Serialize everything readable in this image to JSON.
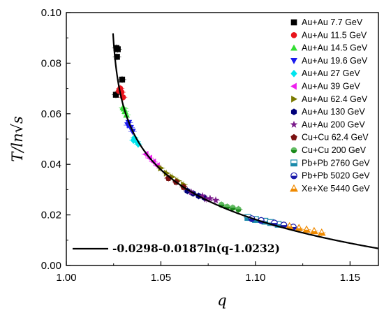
{
  "chart_data": {
    "type": "scatter",
    "title": "",
    "xlabel": "q",
    "ylabel": "T/ln√s",
    "xlim": [
      1.0,
      1.165
    ],
    "ylim": [
      0.0,
      0.1
    ],
    "x_ticks": [
      1.0,
      1.05,
      1.1,
      1.15
    ],
    "y_ticks": [
      0.0,
      0.02,
      0.04,
      0.06,
      0.08,
      0.1
    ],
    "x_tick_labels": [
      "1.00",
      "1.05",
      "1.10",
      "1.15"
    ],
    "y_tick_labels": [
      "0.00",
      "0.02",
      "0.04",
      "0.06",
      "0.08",
      "0.10"
    ],
    "legend_position": "top-right",
    "fit": {
      "label": "-0.0298-0.0187ln(q-1.0232)",
      "a": -0.0298,
      "b": -0.0187,
      "q0": 1.0232
    },
    "series": [
      {
        "name": "Au+Au 7.7 GeV",
        "marker": "square",
        "color": "#000000",
        "points": [
          [
            1.0265,
            0.086
          ],
          [
            1.0272,
            0.0855
          ],
          [
            1.0268,
            0.0825
          ],
          [
            1.0262,
            0.0675
          ],
          [
            1.0295,
            0.0735
          ]
        ]
      },
      {
        "name": "Au+Au 11.5 GeV",
        "marker": "circle",
        "color": "#e8141c",
        "points": [
          [
            1.0285,
            0.07
          ],
          [
            1.0292,
            0.0685
          ],
          [
            1.03,
            0.0665
          ],
          [
            1.0278,
            0.069
          ]
        ]
      },
      {
        "name": "Au+Au 14.5 GeV",
        "marker": "triangle-up",
        "color": "#33dd33",
        "points": [
          [
            1.03,
            0.0625
          ],
          [
            1.031,
            0.061
          ],
          [
            1.0318,
            0.0595
          ],
          [
            1.0305,
            0.062
          ]
        ]
      },
      {
        "name": "Au+Au 19.6 GeV",
        "marker": "triangle-down",
        "color": "#1a1aee",
        "points": [
          [
            1.033,
            0.0565
          ],
          [
            1.034,
            0.0545
          ],
          [
            1.035,
            0.053
          ],
          [
            1.0325,
            0.0555
          ]
        ]
      },
      {
        "name": "Au+Au 27 GeV",
        "marker": "diamond",
        "color": "#00e5ee",
        "points": [
          [
            1.036,
            0.0505
          ],
          [
            1.0372,
            0.049
          ],
          [
            1.038,
            0.048
          ],
          [
            1.0355,
            0.0495
          ]
        ]
      },
      {
        "name": "Au+Au 39 GeV",
        "marker": "triangle-left",
        "color": "#ee20ee",
        "points": [
          [
            1.042,
            0.044
          ],
          [
            1.044,
            0.0425
          ],
          [
            1.046,
            0.041
          ],
          [
            1.048,
            0.0395
          ]
        ]
      },
      {
        "name": "Au+Au 62.4 GeV",
        "marker": "triangle-right",
        "color": "#7a7a00",
        "points": [
          [
            1.05,
            0.0385
          ],
          [
            1.053,
            0.0365
          ],
          [
            1.056,
            0.035
          ],
          [
            1.059,
            0.0335
          ],
          [
            1.062,
            0.032
          ]
        ]
      },
      {
        "name": "Au+Au 130 GeV",
        "marker": "hexagon",
        "color": "#00007a",
        "points": [
          [
            1.064,
            0.0295
          ],
          [
            1.067,
            0.0285
          ],
          [
            1.07,
            0.0275
          ],
          [
            1.073,
            0.0268
          ]
        ]
      },
      {
        "name": "Au+Au 200 GeV",
        "marker": "star",
        "color": "#7a1a8a",
        "points": [
          [
            1.066,
            0.029
          ],
          [
            1.072,
            0.0275
          ],
          [
            1.076,
            0.0265
          ],
          [
            1.079,
            0.0258
          ],
          [
            1.074,
            0.0262
          ]
        ]
      },
      {
        "name": "Cu+Cu 62.4 GeV",
        "marker": "pentagon",
        "color": "#7a1010",
        "points": [
          [
            1.054,
            0.0345
          ],
          [
            1.058,
            0.033
          ],
          [
            1.062,
            0.031
          ]
        ]
      },
      {
        "name": "Cu+Cu 200 GeV",
        "marker": "circle-half",
        "color": "#1a8a1a",
        "points": [
          [
            1.082,
            0.024
          ],
          [
            1.085,
            0.0232
          ],
          [
            1.088,
            0.0228
          ],
          [
            1.091,
            0.0222
          ]
        ]
      },
      {
        "name": "Pb+Pb 2760 GeV",
        "marker": "square-half",
        "color": "#1a8aaa",
        "points": [
          [
            1.096,
            0.019
          ],
          [
            1.1,
            0.0182
          ],
          [
            1.105,
            0.0175
          ],
          [
            1.108,
            0.017
          ],
          [
            1.112,
            0.0163
          ]
        ]
      },
      {
        "name": "Pb+Pb 5020 GeV",
        "marker": "circle-open-half",
        "color": "#1a1aaa",
        "points": [
          [
            1.098,
            0.0185
          ],
          [
            1.103,
            0.0178
          ],
          [
            1.11,
            0.0168
          ],
          [
            1.115,
            0.016
          ],
          [
            1.12,
            0.0152
          ]
        ]
      },
      {
        "name": "Xe+Xe 5440 GeV",
        "marker": "triangle-half",
        "color": "#f08a00",
        "points": [
          [
            1.118,
            0.0155
          ],
          [
            1.123,
            0.0148
          ],
          [
            1.127,
            0.0142
          ],
          [
            1.131,
            0.0136
          ],
          [
            1.135,
            0.013
          ]
        ]
      }
    ]
  }
}
